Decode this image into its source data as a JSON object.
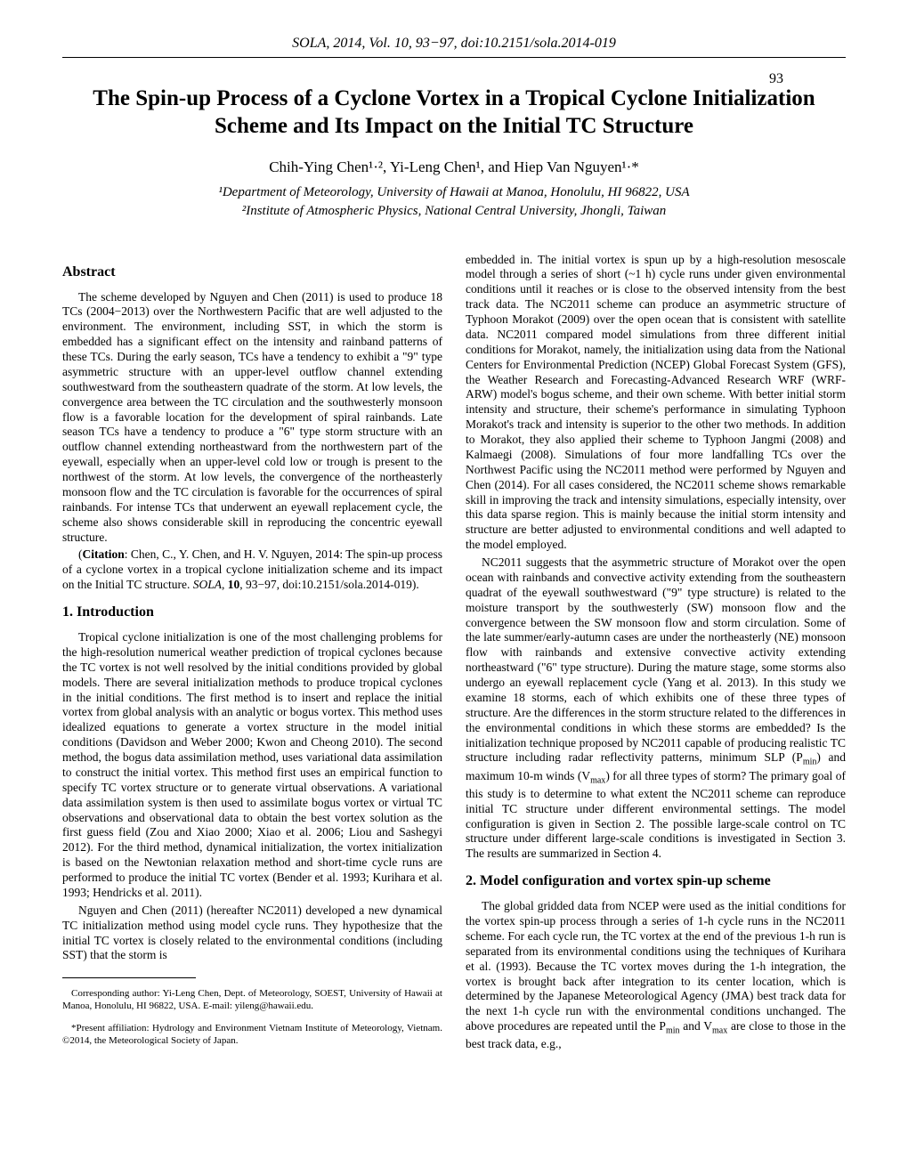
{
  "journal_header": "SOLA, 2014, Vol. 10, 93−97, doi:10.2151/sola.2014-019",
  "page_number": "93",
  "title": "The Spin-up Process of a Cyclone Vortex in a Tropical Cyclone Initialization Scheme and Its Impact on the Initial TC Structure",
  "authors": "Chih-Ying Chen¹·², Yi-Leng Chen¹, and Hiep Van Nguyen¹·*",
  "affiliation1": "¹Department of Meteorology, University of Hawaii at Manoa, Honolulu, HI 96822, USA",
  "affiliation2": "²Institute of Atmospheric Physics, National Central University, Jhongli, Taiwan",
  "abstract_heading": "Abstract",
  "abstract_p1": "The scheme developed by Nguyen and Chen (2011) is used to produce 18 TCs (2004−2013) over the Northwestern Pacific that are well adjusted to the environment. The environment, including SST, in which the storm is embedded has a significant effect on the intensity and rainband patterns of these TCs. During the early season, TCs have a tendency to exhibit a \"9\" type asymmetric structure with an upper-level outflow channel extending southwestward from the southeastern quadrate of the storm. At low levels, the convergence area between the TC circulation and the southwesterly monsoon flow is a favorable location for the development of spiral rainbands. Late season TCs have a tendency to produce a \"6\" type storm structure with an outflow channel extending northeastward from the northwestern part of the eyewall, especially when an upper-level cold low or trough is present to the northwest of the storm. At low levels, the convergence of the northeasterly monsoon flow and the TC circulation is favorable for the occurrences of spiral rainbands. For intense TCs that underwent an eyewall replacement cycle, the scheme also shows considerable skill in reproducing the concentric eyewall structure.",
  "citation": "(Citation: Chen, C., Y. Chen, and H. V. Nguyen, 2014: The spin-up process of a cyclone vortex in a tropical cyclone initialization scheme and its impact on the Initial TC structure. SOLA, 10, 93−97, doi:10.2151/sola.2014-019).",
  "intro_heading": "1. Introduction",
  "intro_p1": "Tropical cyclone initialization is one of the most challenging problems for the high-resolution numerical weather prediction of tropical cyclones because the TC vortex is not well resolved by the initial conditions provided by global models. There are several initialization methods to produce tropical cyclones in the initial conditions. The first method is to insert and replace the initial vortex from global analysis with an analytic or bogus vortex. This method uses idealized equations to generate a vortex structure in the model initial conditions (Davidson and Weber 2000; Kwon and Cheong 2010). The second method, the bogus data assimilation method, uses variational data assimilation to construct the initial vortex. This method first uses an empirical function to specify TC vortex structure or to generate virtual observations. A variational data assimilation system is then used to assimilate bogus vortex or virtual TC observations and observational data to obtain the best vortex solution as the first guess field (Zou and Xiao 2000; Xiao et al. 2006; Liou and Sashegyi 2012). For the third method, dynamical initialization, the vortex initialization is based on the Newtonian relaxation method and short-time cycle runs are performed to produce the initial TC vortex (Bender et al. 1993; Kurihara et al. 1993; Hendricks et al. 2011).",
  "intro_p2": "Nguyen and Chen (2011) (hereafter NC2011) developed a new dynamical TC initialization method using model cycle runs. They hypothesize that the initial TC vortex is closely related to the environmental conditions (including SST) that the storm is",
  "right_p1": "embedded in. The initial vortex is spun up by a high-resolution mesoscale model through a series of short (~1 h) cycle runs under given environmental conditions until it reaches or is close to the observed intensity from the best track data. The NC2011 scheme can produce an asymmetric structure of Typhoon Morakot (2009) over the open ocean that is consistent with satellite data. NC2011 compared model simulations from three different initial conditions for Morakot, namely, the initialization using data from the National Centers for Environmental Prediction (NCEP) Global Forecast System (GFS), the Weather Research and Forecasting-Advanced Research WRF (WRF-ARW) model's bogus scheme, and their own scheme. With better initial storm intensity and structure, their scheme's performance in simulating Typhoon Morakot's track and intensity is superior to the other two methods. In addition to Morakot, they also applied their scheme to Typhoon Jangmi (2008) and Kalmaegi (2008). Simulations of four more landfalling TCs over the Northwest Pacific using the NC2011 method were performed by Nguyen and Chen (2014). For all cases considered, the NC2011 scheme shows remarkable skill in improving the track and intensity simulations, especially intensity, over this data sparse region. This is mainly because the initial storm intensity and structure are better adjusted to environmental conditions and well adapted to the model employed.",
  "right_p2": "NC2011 suggests that the asymmetric structure of Morakot over the open ocean with rainbands and convective activity extending from the southeastern quadrat of the eyewall southwestward (\"9\" type structure) is related to the moisture transport by the southwesterly (SW) monsoon flow and the convergence between the SW monsoon flow and storm circulation. Some of the late summer/early-autumn cases are under the northeasterly (NE) monsoon flow with rainbands and extensive convective activity extending northeastward (\"6\" type structure). During the mature stage, some storms also undergo an eyewall replacement cycle (Yang et al. 2013). In this study we examine 18 storms, each of which exhibits one of these three types of structure. Are the differences in the storm structure related to the differences in the environmental conditions in which these storms are embedded? Is the initialization technique proposed by NC2011 capable of producing realistic TC structure including radar reflectivity patterns, minimum SLP (Pₘᵢₙ) and maximum 10-m winds (Vₘₐₓ) for all three types of storm? The primary goal of this study is to determine to what extent the NC2011 scheme can reproduce initial TC structure under different environmental settings. The model configuration is given in Section 2. The possible large-scale control on TC structure under different large-scale conditions is investigated in Section 3. The results are summarized in Section 4.",
  "section2_heading": "2. Model configuration and vortex spin-up scheme",
  "section2_p1": "The global gridded data from NCEP were used as the initial conditions for the vortex spin-up process through a series of 1-h cycle runs in the NC2011 scheme. For each cycle run, the TC vortex at the end of the previous 1-h run is separated from its environmental conditions using the techniques of Kurihara et al. (1993). Because the TC vortex moves during the 1-h integration, the vortex is brought back after integration to its center location, which is determined by the Japanese Meteorological Agency (JMA) best track data for the next 1-h cycle run with the environmental conditions unchanged. The above procedures are repeated until the Pₘᵢₙ and Vₘₐₓ are close to those in the best track data, e.g.,",
  "footnote1": "Corresponding author: Yi-Leng Chen, Dept. of Meteorology, SOEST, University of Hawaii at Manoa, Honolulu, HI 96822, USA. E-mail: yileng@hawaii.edu.",
  "footnote2": "*Present affiliation: Hydrology and Environment Vietnam Institute of Meteorology, Vietnam. ©2014, the Meteorological Society of Japan."
}
